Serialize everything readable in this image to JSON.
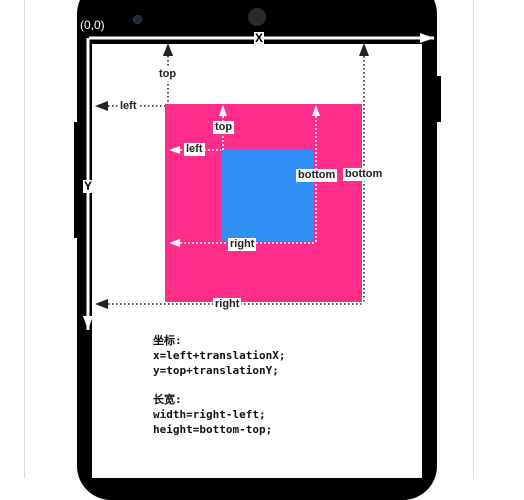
{
  "origin_label": "(0,0)",
  "axes": {
    "x": "X",
    "y": "Y"
  },
  "parent_labels": {
    "top": "top",
    "left": "left",
    "right": "right",
    "bottom": "bottom"
  },
  "child_labels": {
    "top": "top",
    "left": "left",
    "right": "right",
    "bottom": "bottom"
  },
  "colors": {
    "parent_view": "#ff2d8a",
    "child_view": "#2f8ff4",
    "phone": "#000000"
  },
  "notes": {
    "coord_heading": "坐标:",
    "coord_x": "x=left+translationX;",
    "coord_y": "y=top+translationY;",
    "size_heading": "长宽:",
    "size_width": "width=right-left;",
    "size_height": "height=bottom-top;"
  }
}
